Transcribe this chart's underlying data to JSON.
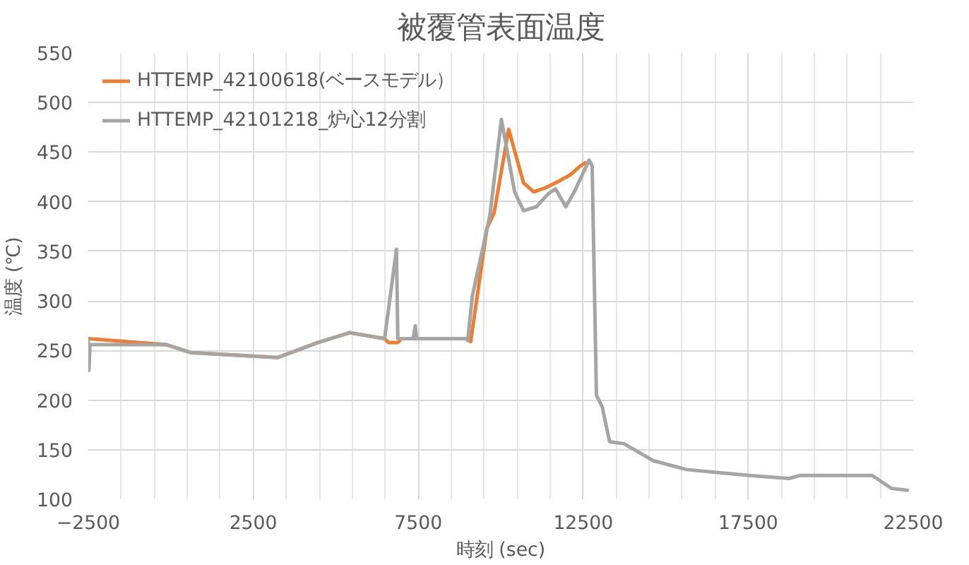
{
  "chart_data": {
    "type": "line",
    "title": "被覆管表面温度",
    "xlabel": "時刻 (sec)",
    "ylabel": "温度 (℃)",
    "xlim": [
      -2500,
      22500
    ],
    "xticks": [
      -2500,
      2500,
      7500,
      12500,
      17500,
      22500
    ],
    "ylim": [
      100,
      550
    ],
    "yticks": [
      100,
      150,
      200,
      250,
      300,
      350,
      400,
      450,
      500,
      550
    ],
    "grid": true,
    "legend": "top left",
    "marker": "none",
    "line_style": "solid",
    "series": [
      {
        "name": "HTTEMP_42100618(ベースモデル）",
        "color": "#ed7d31",
        "x": [
          -2500,
          -150,
          600,
          3250,
          4450,
          5420,
          6480,
          6600,
          6880,
          7000,
          8960,
          9090,
          9580,
          9800,
          10240,
          10690,
          11000,
          11350,
          11660,
          12100,
          12410,
          12600
        ],
        "values": [
          262,
          256,
          248,
          243,
          258,
          268,
          262,
          258,
          258,
          262,
          262,
          259,
          373,
          389,
          473,
          419,
          410,
          414,
          419,
          427,
          436,
          440
        ]
      },
      {
        "name": "HTTEMP_42101218_炉心12分割",
        "color": "#a5a5a5",
        "x": [
          -2500,
          -2480,
          -2450,
          -150,
          600,
          3250,
          4450,
          5420,
          6480,
          6840,
          6880,
          7350,
          7410,
          7450,
          8960,
          9000,
          9140,
          9670,
          10020,
          10420,
          10690,
          11080,
          11440,
          11660,
          11970,
          12230,
          12680,
          12770,
          12900,
          13080,
          13120,
          13300,
          13740,
          14620,
          15640,
          17540,
          18740,
          19050,
          21260,
          21840,
          22370
        ],
        "values": [
          262,
          230,
          256,
          256,
          248,
          243,
          258,
          268,
          262,
          352,
          262,
          262,
          275,
          262,
          262,
          260,
          305,
          386,
          483,
          410,
          391,
          395,
          408,
          413,
          395,
          410,
          442,
          436,
          205,
          193,
          186,
          158,
          156,
          139,
          130,
          124,
          121,
          124,
          124,
          111,
          109
        ]
      }
    ]
  }
}
